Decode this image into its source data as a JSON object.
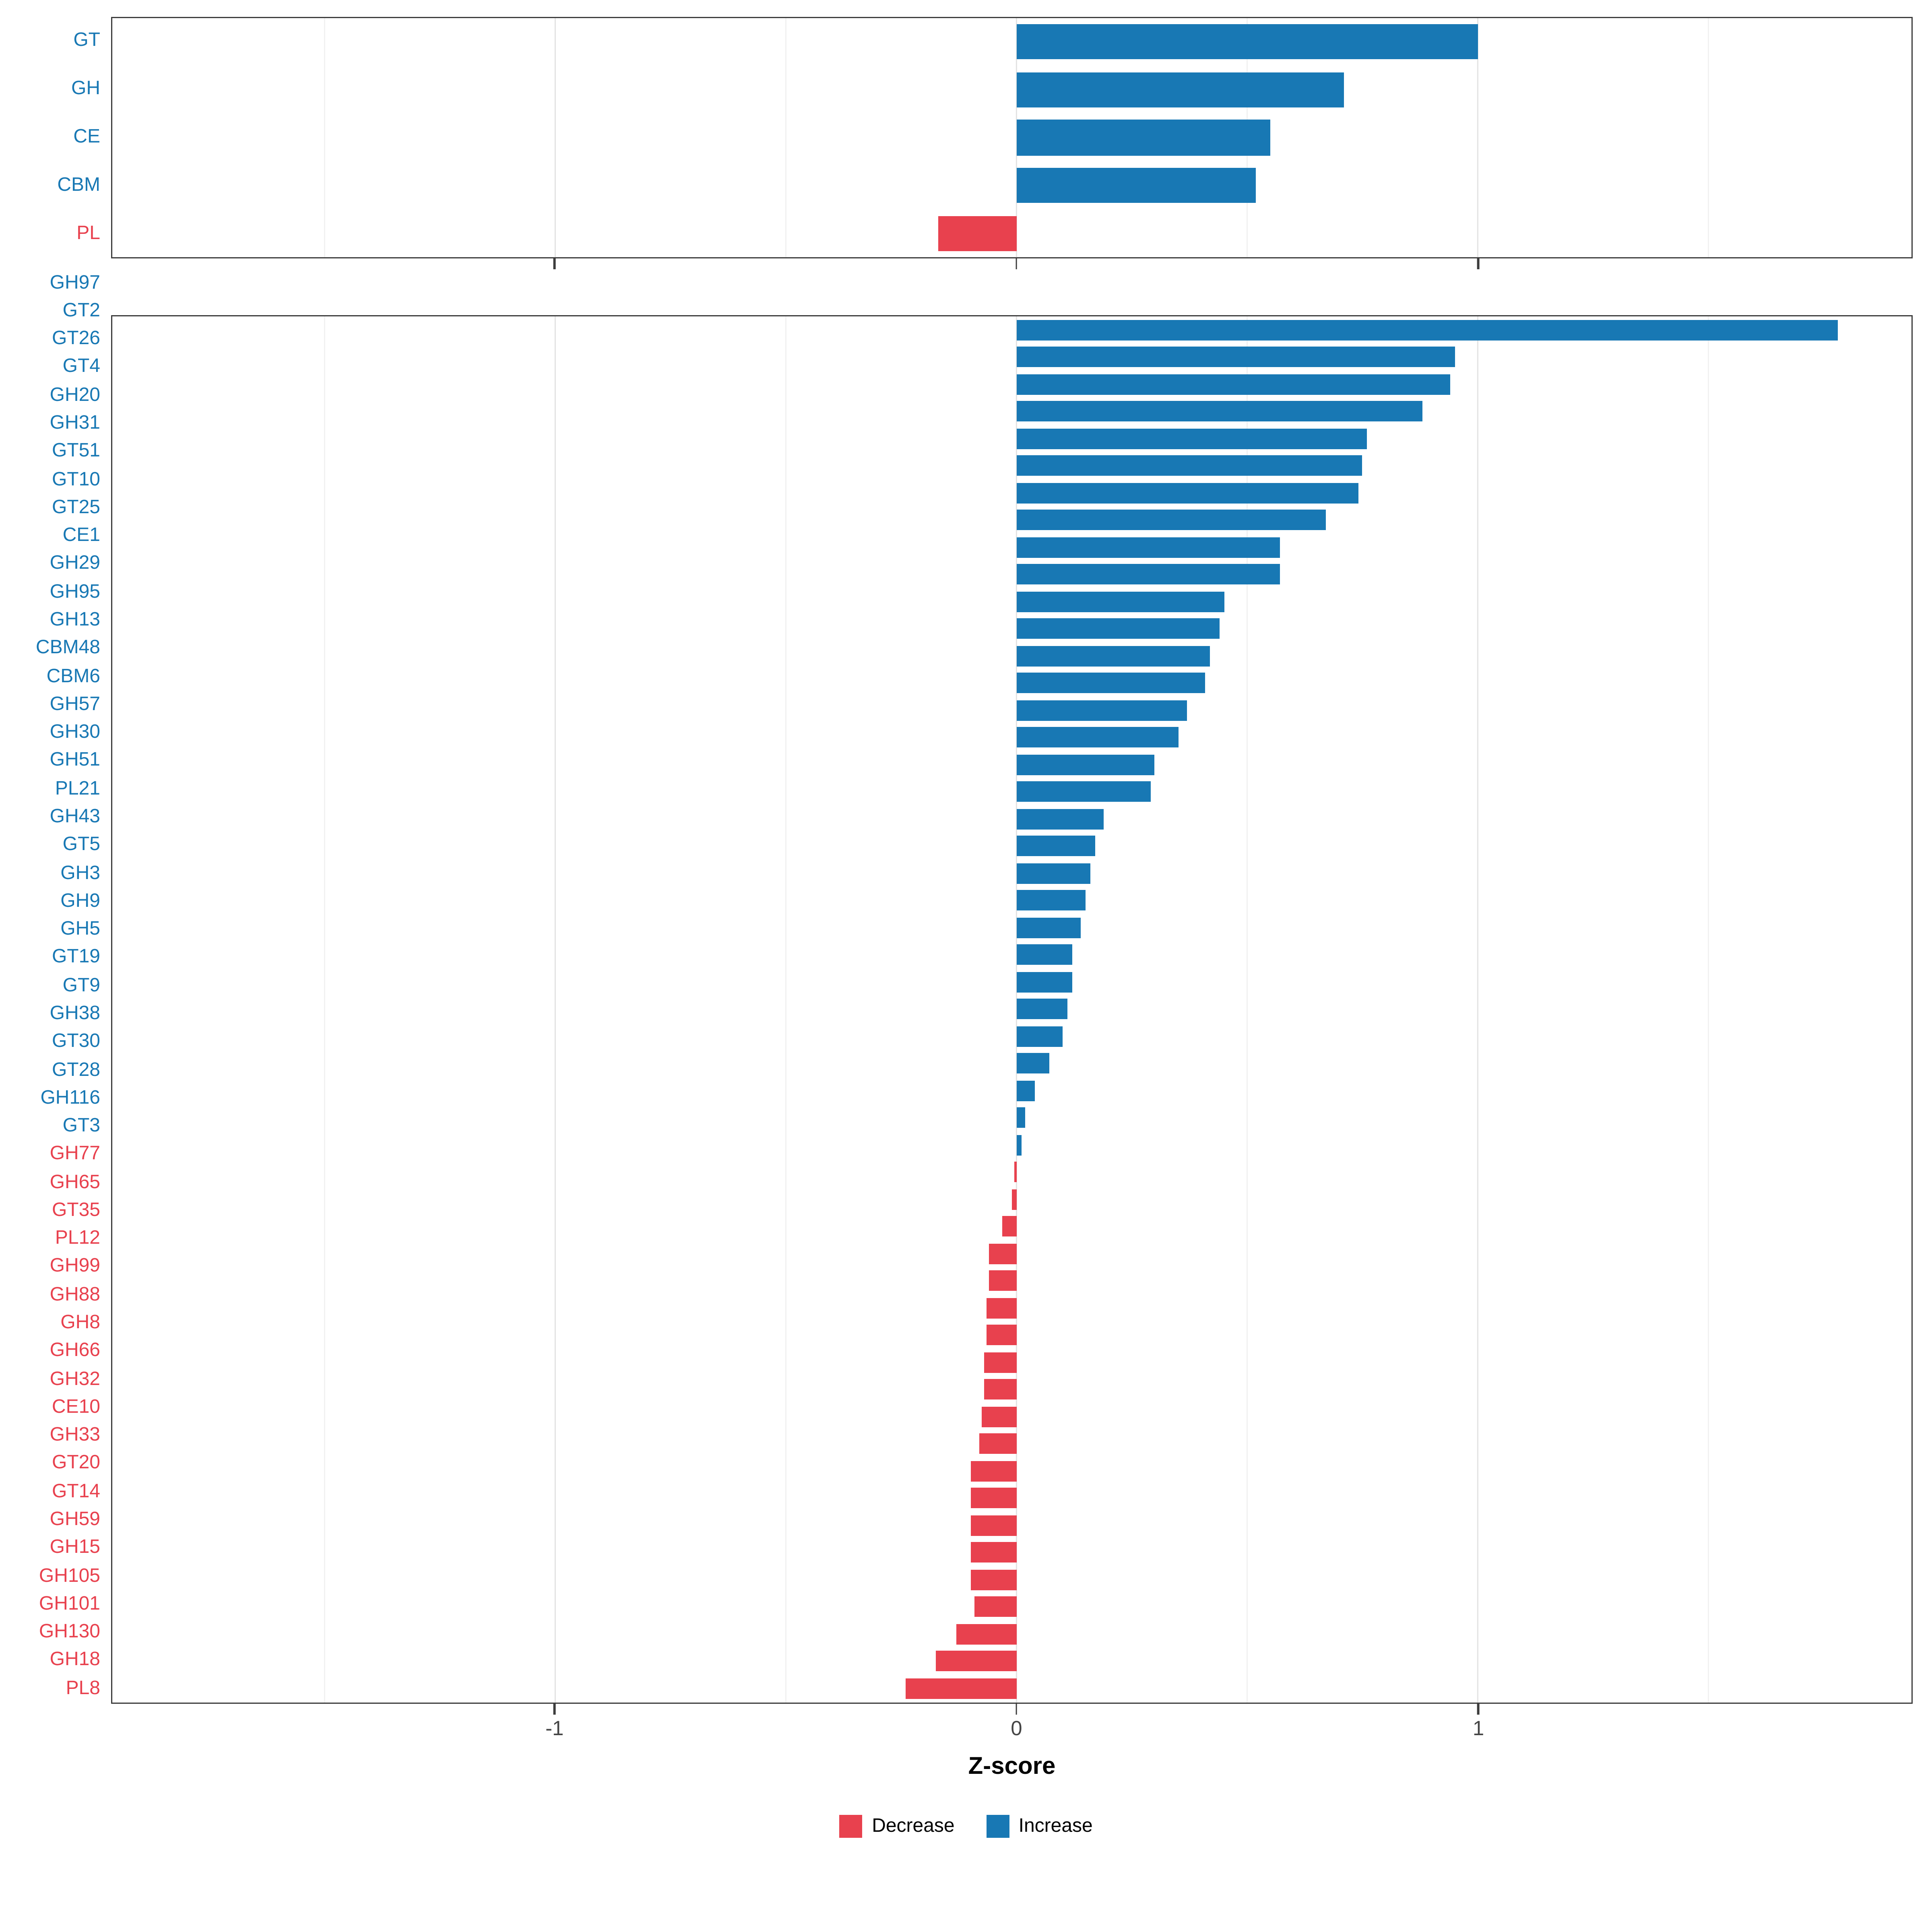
{
  "figure": {
    "xlabel": "Z-score",
    "x_domain": [
      -1.96,
      1.94
    ],
    "x_ticks": [
      -1,
      0,
      1
    ],
    "x_tick_labels": [
      "-1",
      "0",
      "1"
    ],
    "x_minor_ticks": [
      -1.5,
      -0.5,
      0.5,
      1.5
    ],
    "colors": {
      "increase": "#1878b4",
      "decrease": "#e8414e",
      "grid_major": "#e3e3e3",
      "grid_minor": "#f1f1f1",
      "panel_border": "#3c3c3c"
    },
    "legend": [
      {
        "label": "Decrease",
        "color": "#e8414e"
      },
      {
        "label": "Increase",
        "color": "#1878b4"
      }
    ]
  },
  "chart_data": [
    {
      "type": "bar",
      "orientation": "horizontal",
      "panel": "class",
      "categories": [
        "GT",
        "GH",
        "CE",
        "CBM",
        "PL"
      ],
      "values": [
        1.0,
        0.71,
        0.55,
        0.52,
        -0.17
      ]
    },
    {
      "type": "bar",
      "orientation": "horizontal",
      "panel": "family",
      "categories": [
        "GH97",
        "GT2",
        "GT26",
        "GT4",
        "GH20",
        "GH31",
        "GT51",
        "GT10",
        "GT25",
        "CE1",
        "GH29",
        "GH95",
        "GH13",
        "CBM48",
        "CBM6",
        "GH57",
        "GH30",
        "GH51",
        "PL21",
        "GH43",
        "GT5",
        "GH3",
        "GH9",
        "GH5",
        "GT19",
        "GT9",
        "GH38",
        "GT30",
        "GT28",
        "GH116",
        "GT3",
        "GH77",
        "GH65",
        "GT35",
        "PL12",
        "GH99",
        "GH88",
        "GH8",
        "GH66",
        "GH32",
        "CE10",
        "GH33",
        "GT20",
        "GT14",
        "GH59",
        "GH15",
        "GH105",
        "GH101",
        "GH130",
        "GH18",
        "PL8"
      ],
      "values": [
        1.78,
        0.95,
        0.94,
        0.88,
        0.76,
        0.75,
        0.74,
        0.67,
        0.57,
        0.57,
        0.45,
        0.44,
        0.42,
        0.41,
        0.37,
        0.35,
        0.3,
        0.29,
        0.19,
        0.17,
        0.16,
        0.15,
        0.14,
        0.12,
        0.12,
        0.11,
        0.1,
        0.07,
        0.04,
        0.02,
        0.01,
        -0.005,
        -0.01,
        -0.03,
        -0.06,
        -0.06,
        -0.065,
        -0.065,
        -0.07,
        -0.07,
        -0.075,
        -0.08,
        -0.1,
        -0.1,
        -0.1,
        -0.1,
        -0.1,
        -0.09,
        -0.13,
        -0.175,
        -0.24
      ]
    }
  ]
}
